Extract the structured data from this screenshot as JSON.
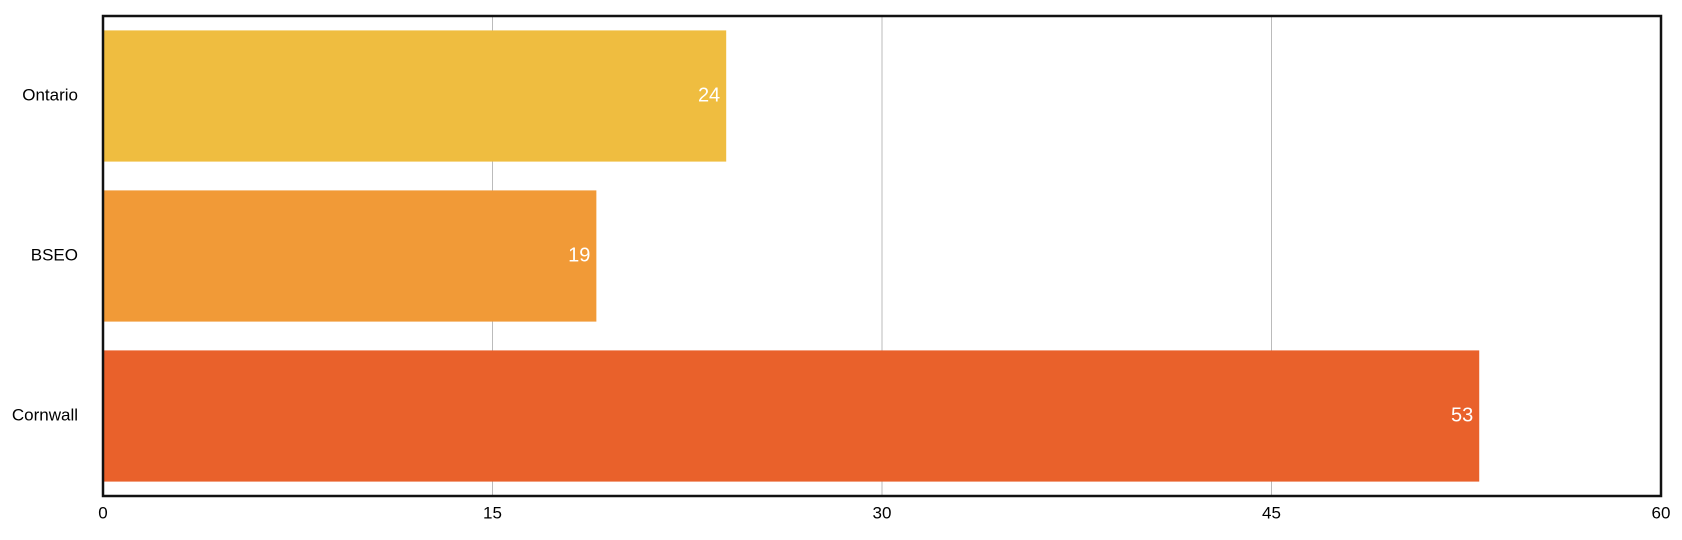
{
  "chart_data": {
    "type": "hbar",
    "categories": [
      "Ontario",
      "BSEO",
      "Cornwall"
    ],
    "values": [
      24,
      19,
      53
    ],
    "colors": [
      "#efbd40",
      "#f19a37",
      "#e9612b"
    ],
    "xlim": [
      0,
      60
    ],
    "xticks": [
      0,
      15,
      30,
      45,
      60
    ],
    "grid": true
  }
}
